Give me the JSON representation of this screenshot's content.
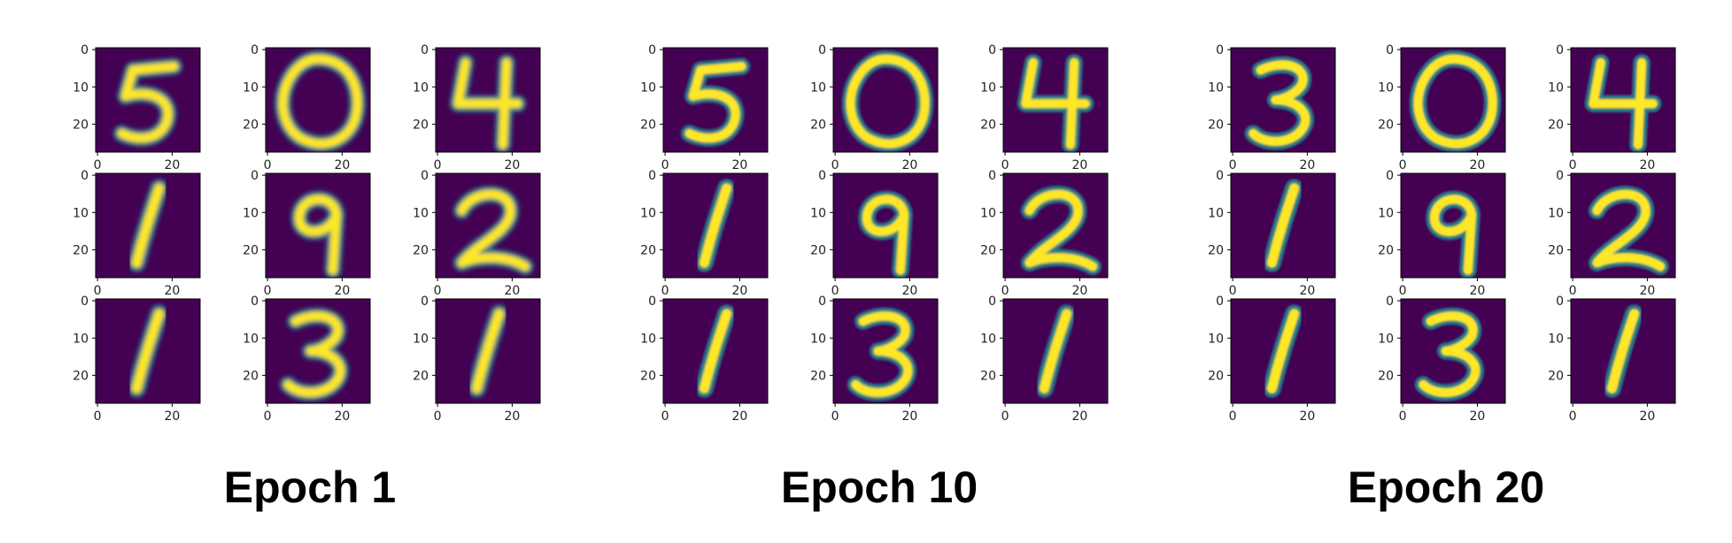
{
  "chart_data": {
    "type": "image-grid",
    "colormap": "viridis",
    "panel_background": "#440154",
    "stroke_low": "#21918c",
    "stroke_high": "#fde725",
    "axis_color": "#000000",
    "x_ticks": [
      "0",
      "20"
    ],
    "y_ticks": [
      "0",
      "10",
      "20"
    ],
    "x_range": [
      0,
      27
    ],
    "y_range": [
      0,
      27
    ],
    "epochs": [
      {
        "title": "Epoch 1",
        "digits": [
          "5",
          "0",
          "4",
          "1",
          "9",
          "2",
          "1",
          "3",
          "1"
        ],
        "blur": 2.2
      },
      {
        "title": "Epoch 10",
        "digits": [
          "5",
          "0",
          "4",
          "1",
          "9",
          "2",
          "1",
          "3",
          "1"
        ],
        "blur": 1.2
      },
      {
        "title": "Epoch 20",
        "digits": [
          "3",
          "0",
          "4",
          "1",
          "9",
          "2",
          "1",
          "3",
          "1"
        ],
        "blur": 1.0
      }
    ]
  }
}
